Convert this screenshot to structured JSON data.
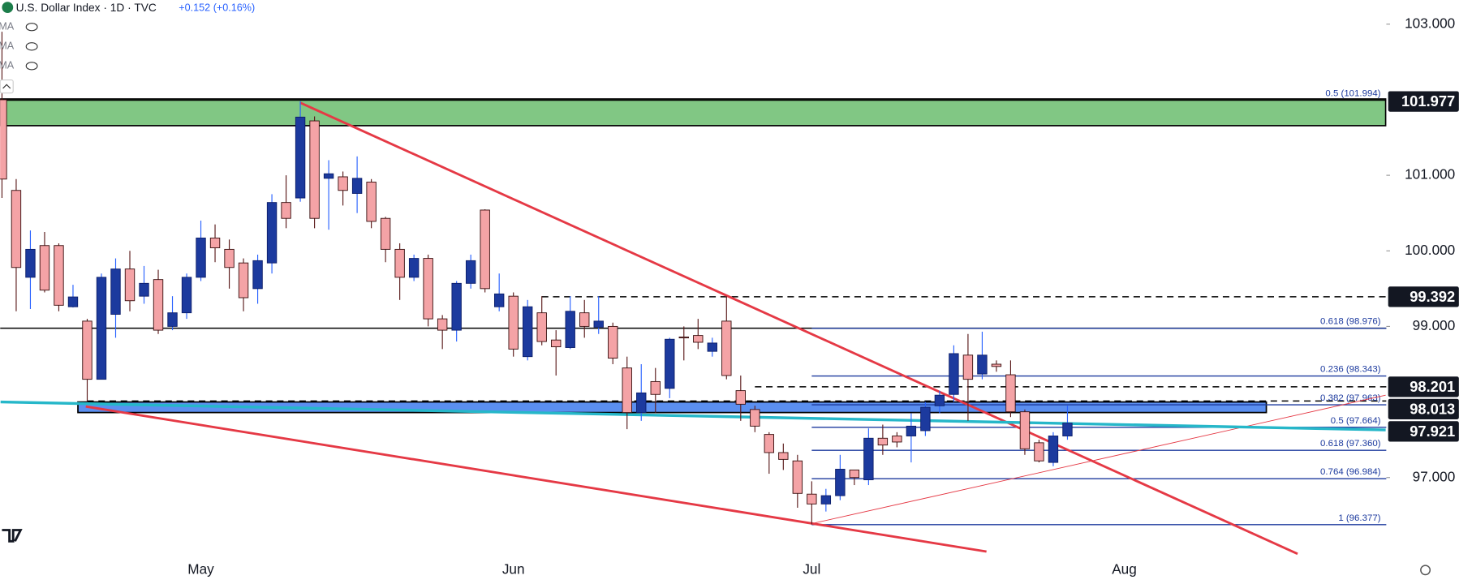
{
  "header": {
    "symbol": "U.S. Dollar Index · 1D · TVC",
    "change": "+0.152",
    "change_pct": "(+0.16%)",
    "indicators": [
      "EMA",
      "EMA",
      "EMA"
    ]
  },
  "chart_data": {
    "type": "candlestick",
    "categories": [
      null,
      null,
      null,
      null,
      null,
      null,
      null,
      null,
      null,
      null,
      null,
      null,
      null,
      null,
      "May",
      null,
      null,
      null,
      null,
      null,
      null,
      null,
      null,
      null,
      null,
      null,
      null,
      null,
      null,
      null,
      null,
      null,
      null,
      null,
      null,
      null,
      "Jun",
      null,
      null,
      null,
      null,
      null,
      null,
      null,
      null,
      null,
      null,
      null,
      null,
      null,
      null,
      null,
      null,
      null,
      null,
      null,
      null,
      "Jul",
      null,
      null,
      null,
      null,
      null,
      null,
      null,
      null,
      null,
      null,
      null,
      null,
      null,
      null,
      null,
      null,
      null,
      null,
      null,
      null,
      null,
      "Aug"
    ],
    "open": [
      102.0,
      100.8,
      99.65,
      100.07,
      100.07,
      99.26,
      99.07,
      98.3,
      99.16,
      99.76,
      99.4,
      99.62,
      99.0,
      99.18,
      99.65,
      100.17,
      100.02,
      99.84,
      99.5,
      99.84,
      100.64,
      100.7,
      101.72,
      100.96,
      100.98,
      100.76,
      100.91,
      100.43,
      100.02,
      99.65,
      99.9,
      99.1,
      98.95,
      99.57,
      100.54,
      99.26,
      99.4,
      98.6,
      99.18,
      98.82,
      98.72,
      99.18,
      98.99,
      99.0,
      98.45,
      97.86,
      98.27,
      98.18,
      98.86,
      98.88,
      98.67,
      99.07,
      98.15,
      97.9,
      97.57,
      97.33,
      97.22,
      96.78,
      96.65,
      96.76,
      97.1,
      96.97,
      97.52,
      97.55,
      97.55,
      97.62,
      97.95,
      98.1,
      98.62,
      98.37,
      98.5,
      98.36,
      97.87,
      97.46,
      97.2,
      97.55,
      null,
      null,
      null,
      null
    ],
    "high": [
      102.9,
      100.95,
      100.27,
      100.25,
      100.1,
      99.55,
      99.1,
      99.7,
      99.9,
      100.0,
      99.8,
      99.75,
      99.4,
      99.7,
      100.4,
      100.35,
      100.15,
      99.9,
      99.95,
      100.75,
      101.0,
      101.98,
      101.78,
      101.2,
      101.05,
      101.25,
      100.95,
      100.45,
      100.1,
      99.95,
      99.95,
      99.15,
      99.6,
      99.95,
      100.55,
      99.7,
      99.45,
      99.35,
      99.4,
      98.95,
      99.4,
      99.35,
      99.4,
      99.05,
      98.6,
      98.5,
      98.45,
      98.85,
      99.0,
      99.1,
      98.85,
      99.4,
      98.35,
      97.95,
      97.6,
      97.45,
      97.3,
      96.95,
      96.85,
      97.3,
      97.1,
      97.65,
      97.7,
      97.6,
      97.85,
      98.0,
      98.15,
      98.75,
      98.9,
      98.93,
      98.55,
      98.55,
      97.9,
      97.5,
      97.6,
      97.95,
      null,
      null,
      null,
      null
    ],
    "low": [
      100.7,
      99.2,
      99.23,
      99.45,
      99.2,
      99.25,
      98.0,
      98.3,
      98.85,
      99.2,
      99.3,
      98.9,
      98.95,
      99.1,
      99.6,
      99.85,
      99.5,
      99.2,
      99.3,
      99.7,
      100.3,
      100.65,
      100.3,
      100.28,
      100.6,
      100.5,
      100.3,
      99.85,
      99.35,
      99.6,
      99.0,
      98.7,
      98.8,
      99.5,
      99.45,
      99.2,
      98.6,
      98.55,
      98.75,
      98.35,
      98.7,
      98.85,
      98.9,
      98.5,
      97.64,
      97.75,
      97.85,
      98.05,
      98.55,
      98.7,
      98.6,
      98.3,
      97.75,
      97.6,
      97.05,
      97.1,
      96.6,
      96.38,
      96.55,
      96.7,
      96.9,
      96.9,
      97.3,
      97.4,
      97.2,
      97.55,
      97.85,
      98.0,
      97.75,
      98.3,
      98.4,
      97.8,
      97.3,
      97.2,
      97.15,
      97.5,
      null,
      null,
      null,
      null
    ],
    "close": [
      100.95,
      99.78,
      100.02,
      99.48,
      99.28,
      99.39,
      98.3,
      99.65,
      99.76,
      99.34,
      99.57,
      98.95,
      99.18,
      99.65,
      100.17,
      100.04,
      99.78,
      99.38,
      99.87,
      100.64,
      100.43,
      101.77,
      100.43,
      101.02,
      100.8,
      100.96,
      100.39,
      100.02,
      99.65,
      99.9,
      99.1,
      98.95,
      99.57,
      99.87,
      99.5,
      99.43,
      98.7,
      99.26,
      98.8,
      98.73,
      99.2,
      99.0,
      99.07,
      98.58,
      97.86,
      98.12,
      98.1,
      98.83,
      98.85,
      98.79,
      98.78,
      98.35,
      97.97,
      97.68,
      97.33,
      97.24,
      96.79,
      96.65,
      96.76,
      97.11,
      97.0,
      97.52,
      97.43,
      97.47,
      97.68,
      97.93,
      98.09,
      98.64,
      98.3,
      98.62,
      98.47,
      97.87,
      97.38,
      97.22,
      97.55,
      97.72,
      null,
      null,
      null,
      null
    ],
    "bull_color": "#1c3a9e",
    "bear_color": "#f4a3a6",
    "ylim": [
      95.96,
      103.32
    ],
    "yticks": [
      {
        "value": 97,
        "label": "97.000"
      },
      {
        "value": 99,
        "label": "99.000"
      },
      {
        "value": 100,
        "label": "100.000"
      },
      {
        "value": 101,
        "label": "101.000"
      },
      {
        "value": 103,
        "label": "103.000"
      }
    ],
    "zones": [
      {
        "low": 101.657,
        "high": 102.01,
        "from": 0,
        "to": 97.4,
        "color": "#81c784"
      },
      {
        "low": 97.86,
        "high": 98.0,
        "from": 6,
        "to": 89,
        "color": "#5b8ff0"
      }
    ],
    "hlines": [
      {
        "value": 99.392,
        "from": 38,
        "dash": true
      },
      {
        "value": 98.201,
        "from": 53,
        "dash": true
      },
      {
        "value": 98.013,
        "from": 6,
        "dash": true
      },
      {
        "value": 98.976,
        "from": 0,
        "dash": false
      }
    ],
    "fib": [
      {
        "value": 101.994,
        "label": "0.5 (101.994)",
        "from": 0
      },
      {
        "value": 98.976,
        "label": "0.618 (98.976)",
        "from": 57
      },
      {
        "value": 98.343,
        "label": "0.236 (98.343)",
        "from": 57
      },
      {
        "value": 97.963,
        "label": "0.382 (97.963)",
        "from": 57
      },
      {
        "value": 97.664,
        "label": "0.5 (97.664)",
        "from": 57
      },
      {
        "value": 97.36,
        "label": "0.618 (97.360)",
        "from": 57
      },
      {
        "value": 96.984,
        "label": "0.764 (96.984)",
        "from": 57
      },
      {
        "value": 96.377,
        "label": "1 (96.377)",
        "from": 57
      }
    ],
    "trendlines": [
      {
        "x": [
          21,
          91.2
        ],
        "y": [
          101.96,
          95.99
        ],
        "color": "#e53945",
        "width": 2.5
      },
      {
        "x": [
          5.9,
          69.3
        ],
        "y": [
          97.94,
          96.02
        ],
        "color": "#e53945",
        "width": 2.5
      },
      {
        "x": [
          57,
          97.4
        ],
        "y": [
          96.39,
          98.09
        ],
        "color": "#e53945",
        "width": 0.8
      },
      {
        "x": [
          -0.1,
          97.4
        ],
        "y": [
          98.0,
          97.63
        ],
        "color": "#26b7c9",
        "width": 3
      }
    ],
    "price_tags": [
      {
        "value": 101.977,
        "label": "101.977"
      },
      {
        "value": 99.392,
        "label": "99.392"
      },
      {
        "value": 98.201,
        "label": "98.201"
      },
      {
        "value": 98.013,
        "label": "98.013"
      },
      {
        "value": 97.921,
        "label": "97.921"
      }
    ]
  }
}
